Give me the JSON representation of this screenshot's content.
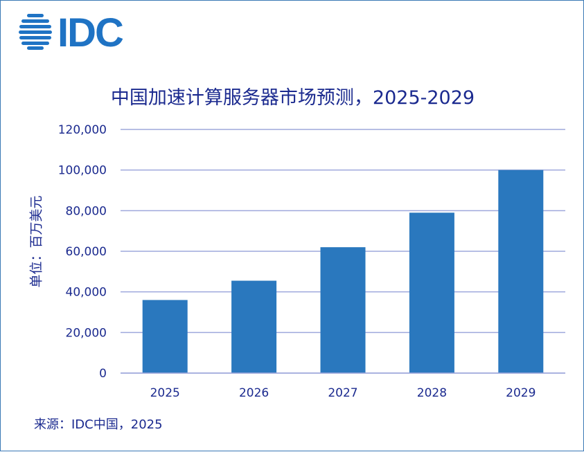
{
  "brand": {
    "logo_text": "IDC",
    "color": "#1f73c4"
  },
  "colors": {
    "bar": "#2a78be",
    "grid": "#9ea8dc",
    "text": "#1b2a8f"
  },
  "footer": {
    "source": "来源：IDC中国，2025"
  },
  "chart_data": {
    "type": "bar",
    "title": "中国加速计算服务器市场预测，2025-2029",
    "xlabel": "",
    "ylabel": "单位：百万美元",
    "categories": [
      "2025",
      "2026",
      "2027",
      "2028",
      "2029"
    ],
    "values": [
      36000,
      45500,
      62000,
      79000,
      100000
    ],
    "ylim": [
      0,
      120000
    ],
    "yticks": [
      "0",
      "20,000",
      "40,000",
      "60,000",
      "80,000",
      "100,000",
      "120,000"
    ],
    "grid": true,
    "legend": "none"
  }
}
